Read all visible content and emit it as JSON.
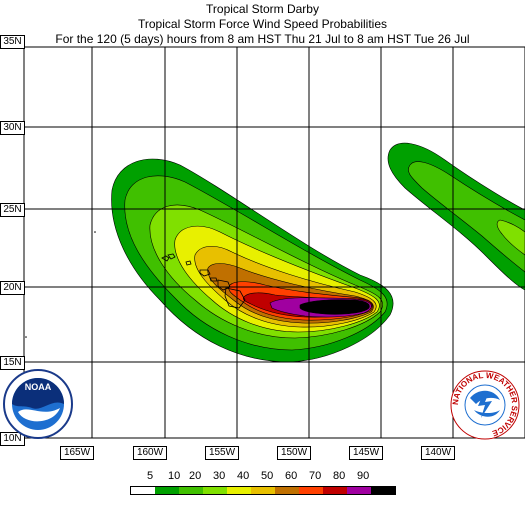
{
  "titles": {
    "line1": "Tropical Storm Darby",
    "line2": "Tropical Storm Force Wind Speed Probabilities",
    "line3": "For the 120 (5 days) hours from 8 am HST Thu 21 Jul to 8 am HST Tue 26 Jul"
  },
  "lat_labels": [
    "35N",
    "30N",
    "25N",
    "20N",
    "15N",
    "10N"
  ],
  "lon_labels": [
    "165W",
    "160W",
    "155W",
    "150W",
    "145W",
    "140W"
  ],
  "legend": {
    "values": [
      "5",
      "10",
      "20",
      "30",
      "40",
      "50",
      "60",
      "70",
      "80",
      "90"
    ],
    "colors": [
      "#ffffff",
      "#00a000",
      "#40c000",
      "#80e000",
      "#e8f000",
      "#e8c000",
      "#c07000",
      "#ff4000",
      "#c00000",
      "#a000a0",
      "#000000"
    ]
  },
  "logos": {
    "noaa": "NOAA",
    "nws": "NATIONAL WEATHER SERVICE"
  }
}
